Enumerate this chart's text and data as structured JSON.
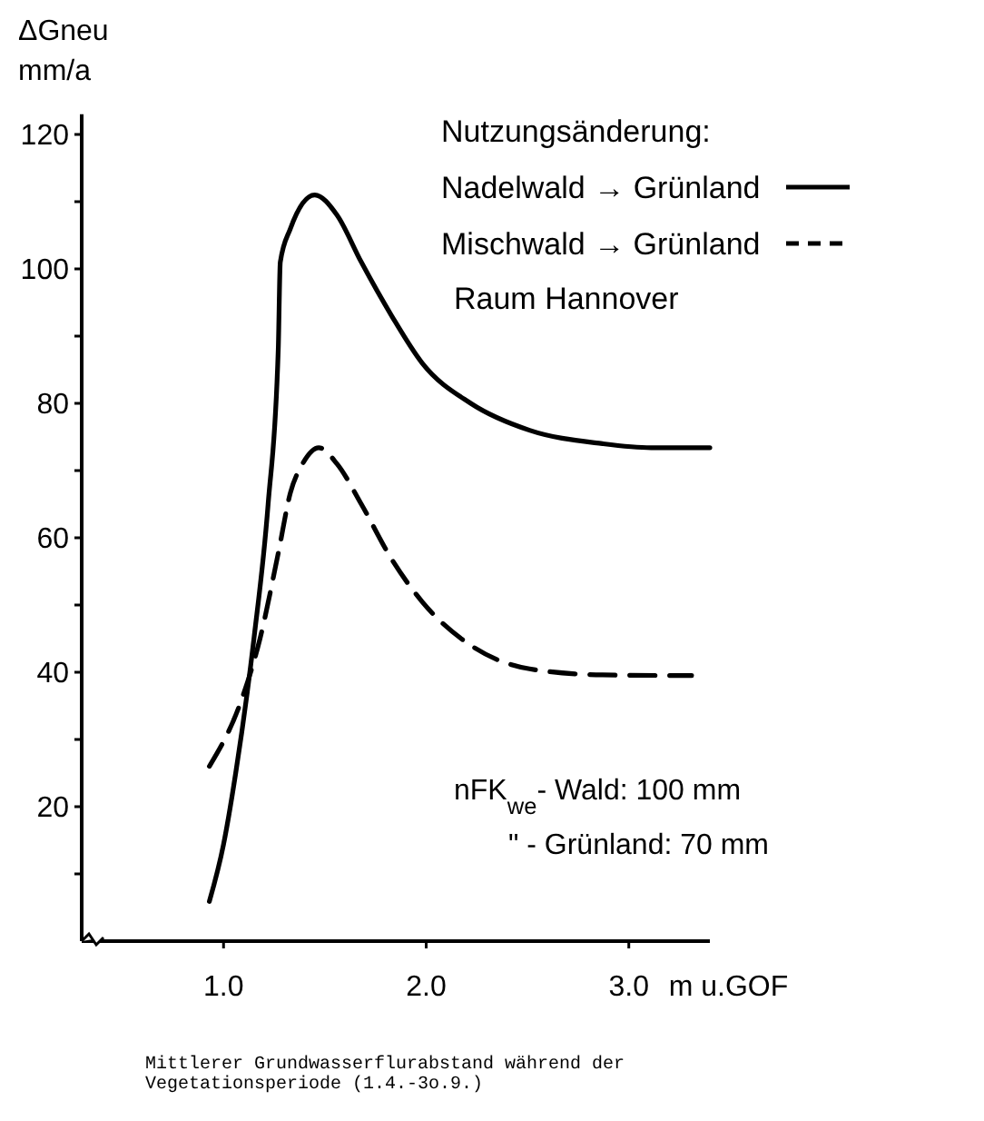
{
  "chart_data": {
    "type": "line",
    "ylabel": "ΔGneu\nmm/a",
    "xlabel": "m u.GOF",
    "legend_title": "Nutzungsänderung:",
    "legend": "top right",
    "grid": false,
    "xlim": [
      0.3,
      3.4
    ],
    "xticks": [
      {
        "value": 1,
        "label": "1.0"
      },
      {
        "value": 2,
        "label": "2.0"
      },
      {
        "value": 3,
        "label": "3.0"
      }
    ],
    "ylim": [
      0,
      123
    ],
    "yticks": [
      {
        "value": 10,
        "label": null
      },
      20,
      {
        "value": 30,
        "label": null
      },
      40,
      {
        "value": 50,
        "label": null
      },
      60,
      {
        "value": 70,
        "label": null
      },
      80,
      {
        "value": 90,
        "label": null
      },
      100,
      {
        "value": 110,
        "label": null
      },
      120
    ],
    "series": [
      {
        "name": "Nadelwald → Grünland",
        "color": "#000000",
        "line_style": "solid",
        "x": [
          0.93,
          1.0,
          1.06,
          1.15,
          1.22,
          1.27,
          1.28,
          1.33,
          1.45,
          1.56,
          1.68,
          1.83,
          1.98,
          2.22,
          2.51,
          2.87,
          3.11,
          3.4
        ],
        "values": [
          5.9,
          14.4,
          25,
          45,
          65,
          88,
          101,
          106,
          111,
          108,
          101,
          93,
          86,
          80,
          76,
          74,
          73.4,
          73.4
        ]
      },
      {
        "name": "Mischwald → Grünland",
        "color": "#000000",
        "line_style": "dashed",
        "x": [
          0.93,
          1.09,
          1.18,
          1.27,
          1.33,
          1.39,
          1.47,
          1.56,
          1.68,
          1.83,
          1.98,
          2.22,
          2.51,
          2.87,
          3.31
        ],
        "values": [
          26,
          36,
          45,
          57.7,
          66.7,
          71,
          73.4,
          71,
          65,
          56.8,
          50.5,
          44,
          40.5,
          39.6,
          39.5
        ]
      }
    ],
    "annotations": [
      "Raum Hannover",
      "nFK$_{we}$- Wald: 100 mm",
      "\"  - Grünland: 70 mm",
      "Mittlerer Grundwasserflurabstand während der Vegetationsperiode (1.4.-3o.9.)"
    ]
  }
}
